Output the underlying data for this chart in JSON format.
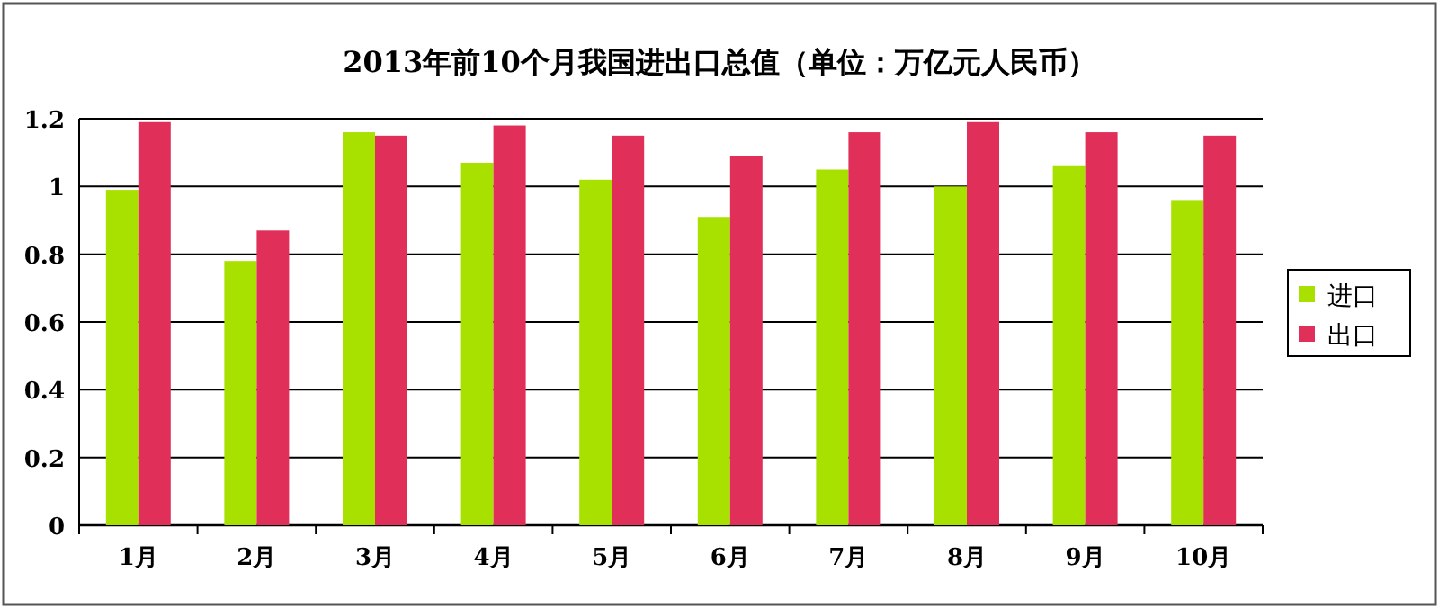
{
  "chart_data": {
    "type": "bar",
    "title": "2013年前10个月我国进出口总值（单位：万亿元人民币）",
    "categories": [
      "1月",
      "2月",
      "3月",
      "4月",
      "5月",
      "6月",
      "7月",
      "8月",
      "9月",
      "10月"
    ],
    "series": [
      {
        "name": "进口",
        "color": "#a8e000",
        "values": [
          0.99,
          0.78,
          1.16,
          1.07,
          1.02,
          0.91,
          1.05,
          1.0,
          1.06,
          0.96
        ]
      },
      {
        "name": "出口",
        "color": "#e0305a",
        "values": [
          1.19,
          0.87,
          1.15,
          1.18,
          1.15,
          1.09,
          1.16,
          1.19,
          1.16,
          1.15
        ]
      }
    ],
    "ylim": [
      0,
      1.2
    ],
    "yticks": [
      0,
      0.2,
      0.4,
      0.6,
      0.8,
      1,
      1.2
    ],
    "grid": "y",
    "legend": "right"
  }
}
